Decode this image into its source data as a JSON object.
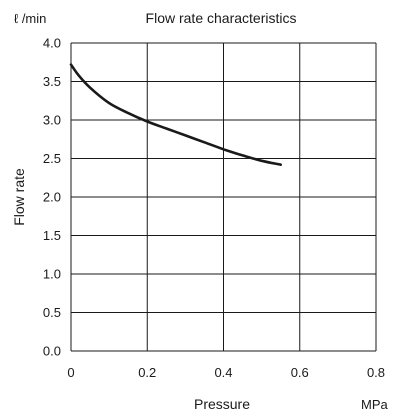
{
  "chart_data": {
    "type": "line",
    "title": "Flow rate characteristics",
    "xlabel": "Pressure",
    "ylabel": "Flow rate",
    "x_unit": "MPa",
    "y_unit": "ℓ /min",
    "xlim": [
      0,
      0.8
    ],
    "ylim": [
      0,
      4.0
    ],
    "x_ticks": [
      "0",
      "0.2",
      "0.4",
      "0.6",
      "0.8"
    ],
    "y_ticks": [
      "0.0",
      "0.5",
      "1.0",
      "1.5",
      "2.0",
      "2.5",
      "3.0",
      "3.5",
      "4.0"
    ],
    "x_grid": [
      0,
      0.2,
      0.4,
      0.6,
      0.8
    ],
    "y_grid": [
      0,
      0.5,
      1.0,
      1.5,
      2.0,
      2.5,
      3.0,
      3.5,
      4.0
    ],
    "grid": true,
    "series": [
      {
        "x": [
          0.0,
          0.02,
          0.05,
          0.1,
          0.15,
          0.2,
          0.25,
          0.3,
          0.35,
          0.4,
          0.45,
          0.5,
          0.55
        ],
        "values": [
          3.72,
          3.58,
          3.42,
          3.22,
          3.09,
          2.98,
          2.89,
          2.8,
          2.71,
          2.62,
          2.54,
          2.47,
          2.42
        ]
      }
    ],
    "line_color": "#1a1a1a",
    "grid_color": "#1a1a1a"
  }
}
